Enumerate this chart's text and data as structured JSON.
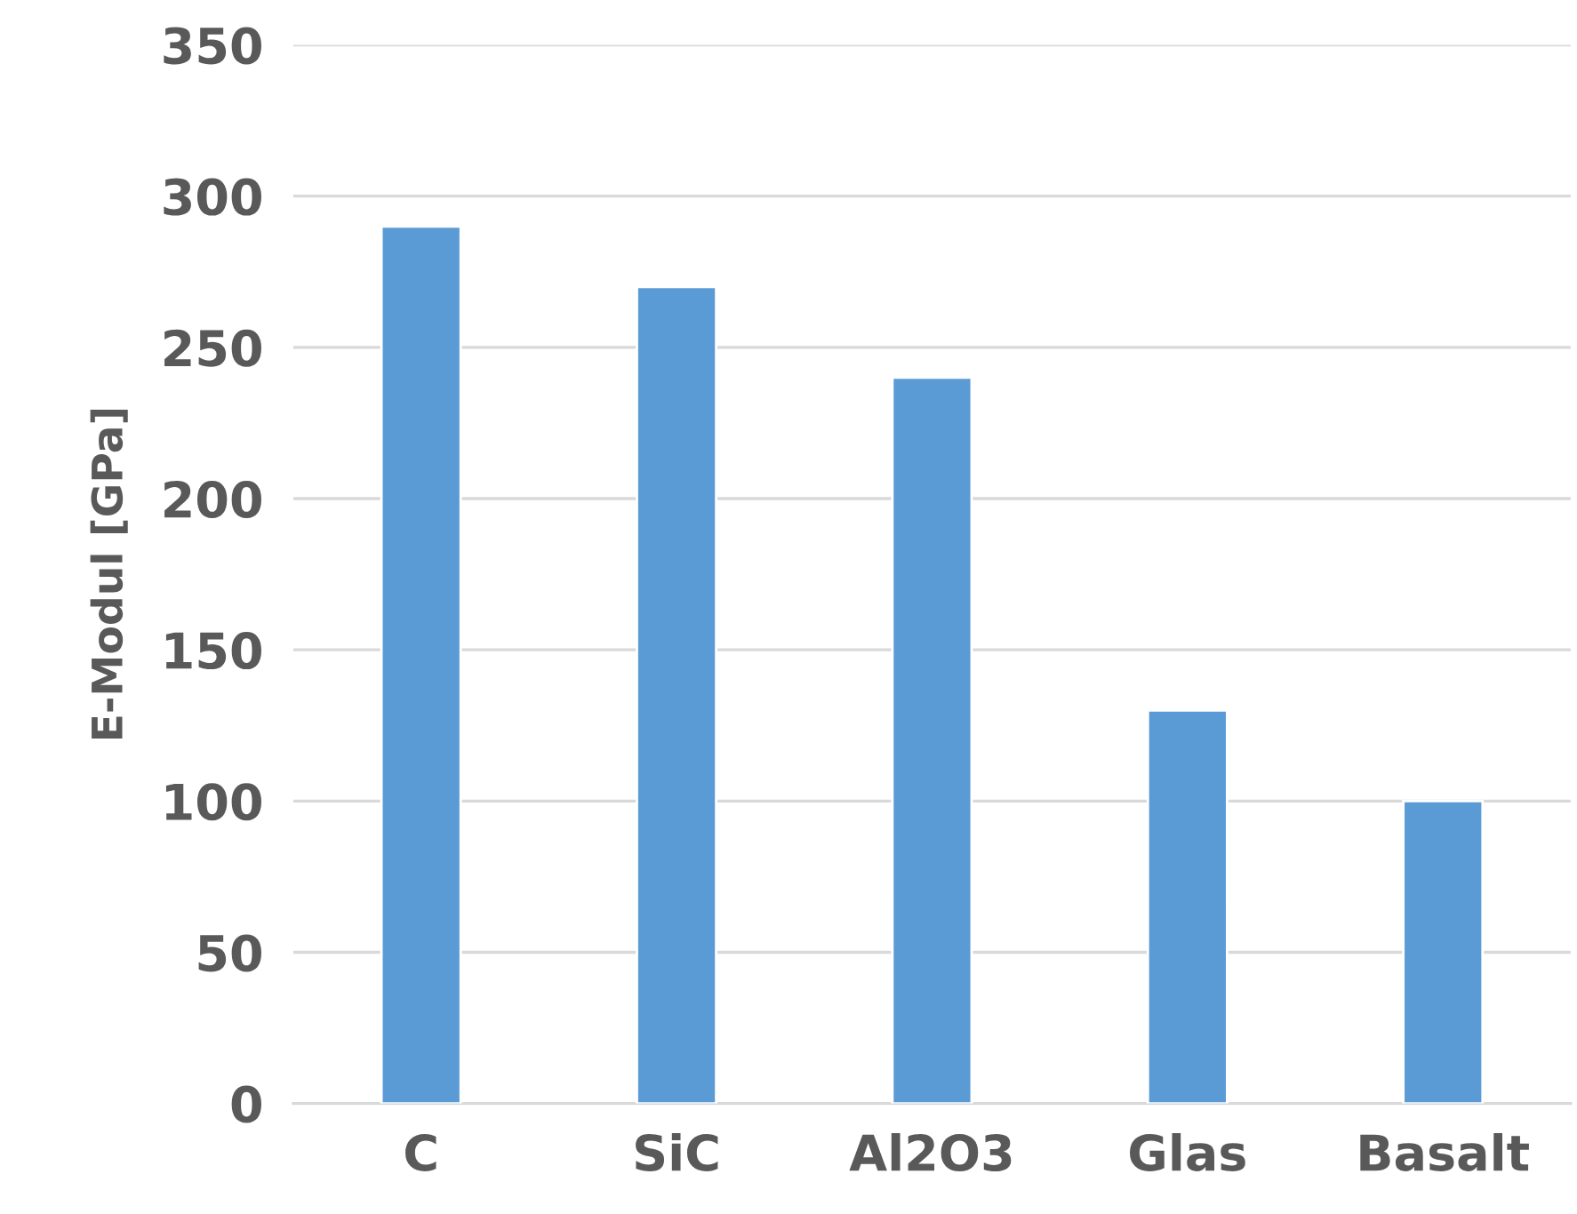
{
  "chart_data": {
    "type": "bar",
    "ylabel": "E-Modul [GPa]",
    "categories": [
      "C",
      "SiC",
      "Al2O3",
      "Glas",
      "Basalt"
    ],
    "values": [
      290,
      270,
      240,
      130,
      100
    ],
    "color": "#5b9bd5",
    "ylim": [
      0,
      350
    ],
    "yticks": [
      0,
      50,
      100,
      150,
      200,
      250,
      300,
      350
    ],
    "grid": "y"
  }
}
